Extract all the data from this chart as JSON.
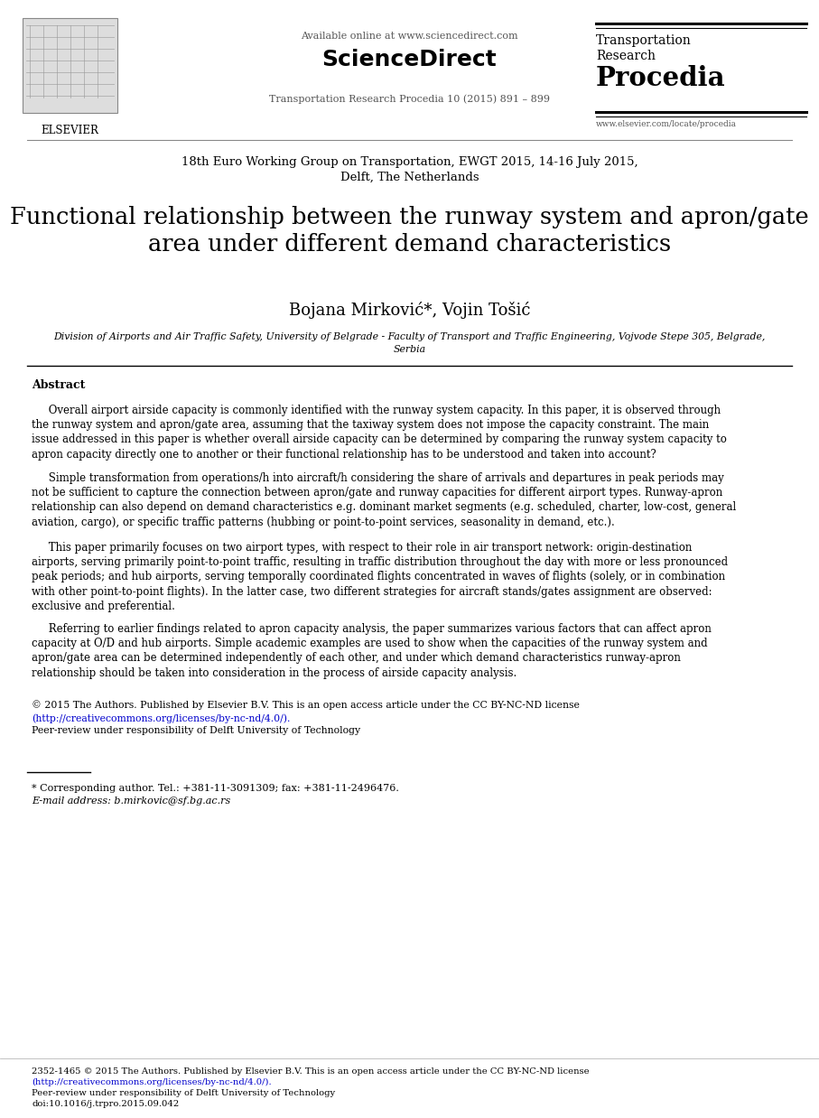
{
  "bg_color": "#ffffff",
  "header_available": "Available online at www.sciencedirect.com",
  "header_sd": "ScienceDirect",
  "header_journal": "Transportation Research Procedia 10 (2015) 891 – 899",
  "trp_line1": "Transportation",
  "trp_line2": "Research",
  "trp_line3": "Procedia",
  "trp_url": "www.elsevier.com/locate/procedia",
  "elsevier_label": "ELSEVIER",
  "conference": "18th Euro Working Group on Transportation, EWGT 2015, 14-16 July 2015,\nDelft, The Netherlands",
  "title": "Functional relationship between the runway system and apron/gate\narea under different demand characteristics",
  "authors": "Bojana Mirković*, Vojin Tošić",
  "affiliation_line1": "Division of Airports and Air Traffic Safety, University of Belgrade - Faculty of Transport and Traffic Engineering, Vojvode Stepe 305, Belgrade,",
  "affiliation_line2": "Serbia",
  "abstract_label": "Abstract",
  "abstract_p1": "     Overall airport airside capacity is commonly identified with the runway system capacity. In this paper, it is observed through\nthe runway system and apron/gate area, assuming that the taxiway system does not impose the capacity constraint. The main\nissue addressed in this paper is whether overall airside capacity can be determined by comparing the runway system capacity to\napron capacity directly one to another or their functional relationship has to be understood and taken into account?",
  "abstract_p2": "     Simple transformation from operations/h into aircraft/h considering the share of arrivals and departures in peak periods may\nnot be sufficient to capture the connection between apron/gate and runway capacities for different airport types. Runway-apron\nrelationship can also depend on demand characteristics e.g. dominant market segments (e.g. scheduled, charter, low-cost, general\naviation, cargo), or specific traffic patterns (hubbing or point-to-point services, seasonality in demand, etc.).",
  "abstract_p3": "     This paper primarily focuses on two airport types, with respect to their role in air transport network: origin-destination\nairports, serving primarily point-to-point traffic, resulting in traffic distribution throughout the day with more or less pronounced\npeak periods; and hub airports, serving temporally coordinated flights concentrated in waves of flights (solely, or in combination\nwith other point-to-point flights). In the latter case, two different strategies for aircraft stands/gates assignment are observed:\nexclusive and preferential.",
  "abstract_p4": "     Referring to earlier findings related to apron capacity analysis, the paper summarizes various factors that can affect apron\ncapacity at O/D and hub airports. Simple academic examples are used to show when the capacities of the runway system and\napron/gate area can be determined independently of each other, and under which demand characteristics runway-apron\nrelationship should be taken into consideration in the process of airside capacity analysis.",
  "copyright_line1": "© 2015 The Authors. Published by Elsevier B.V. This is an open access article under the CC BY-NC-ND license",
  "copyright_link": "(http://creativecommons.org/licenses/by-nc-nd/4.0/).",
  "copyright_line3": "Peer-review under responsibility of Delft University of Technology",
  "footnote_text": "* Corresponding author. Tel.: +381-11-3091309; fax: +381-11-2496476.",
  "footnote_email": "E-mail address: b.mirkovic@sf.bg.ac.rs",
  "bottom_line1": "2352-1465 © 2015 The Authors. Published by Elsevier B.V. This is an open access article under the CC BY-NC-ND license",
  "bottom_link": "(http://creativecommons.org/licenses/by-nc-nd/4.0/).",
  "bottom_line3": "Peer-review under responsibility of Delft University of Technology",
  "bottom_doi": "doi:10.1016/j.trpro.2015.09.042",
  "link_color": "#0000cc",
  "text_color": "#000000"
}
